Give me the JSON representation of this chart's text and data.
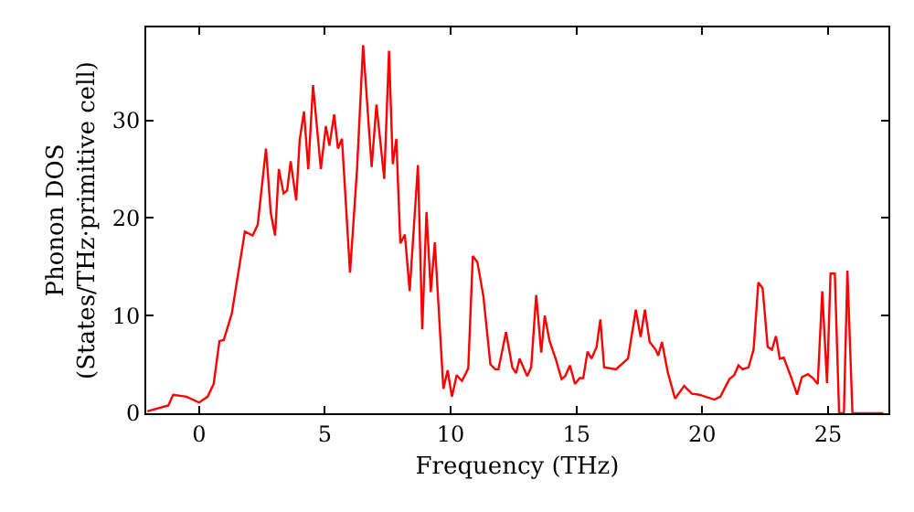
{
  "chart_data": {
    "type": "line",
    "xlabel": "Frequency (THz)",
    "ylabel": "Phonon DOS\n(States/THz·primitive cell)",
    "xlim": [
      -2.1,
      27.4
    ],
    "ylim": [
      0,
      39.5
    ],
    "xticks": [
      0,
      5,
      10,
      15,
      20,
      25
    ],
    "yticks": [
      0,
      10,
      20,
      30
    ],
    "marker": "none",
    "line_style": "solid",
    "series": [
      {
        "color": "#ff0000",
        "x": [
          -2.06,
          -1.22,
          -1.03,
          -0.5,
          0,
          0.34,
          0.58,
          0.81,
          0.98,
          1.3,
          1.82,
          2.13,
          2.33,
          2.66,
          2.85,
          3.02,
          3.17,
          3.36,
          3.5,
          3.64,
          3.86,
          4.0,
          4.17,
          4.34,
          4.53,
          4.84,
          5.04,
          5.18,
          5.37,
          5.52,
          5.68,
          6.0,
          6.28,
          6.52,
          6.86,
          7.05,
          7.36,
          7.55,
          7.7,
          7.84,
          8.0,
          8.18,
          8.37,
          8.7,
          8.87,
          9.04,
          9.21,
          9.37,
          9.71,
          9.88,
          10.05,
          10.24,
          10.45,
          10.7,
          10.88,
          11.06,
          11.3,
          11.58,
          11.77,
          11.9,
          12.2,
          12.45,
          12.6,
          12.74,
          13.04,
          13.2,
          13.4,
          13.6,
          13.74,
          13.93,
          14.17,
          14.41,
          14.55,
          14.74,
          14.94,
          15.13,
          15.27,
          15.44,
          15.6,
          15.8,
          15.95,
          16.1,
          16.57,
          17.05,
          17.36,
          17.55,
          17.72,
          17.91,
          18.15,
          18.25,
          18.4,
          18.63,
          18.92,
          19.28,
          19.59,
          19.88,
          20.48,
          20.72,
          21.08,
          21.27,
          21.44,
          21.6,
          21.84,
          22.04,
          22.23,
          22.4,
          22.6,
          22.77,
          22.93,
          23.08,
          23.24,
          23.53,
          23.77,
          23.96,
          24.2,
          24.4,
          24.59,
          24.77,
          24.96,
          25.1,
          25.27,
          25.44,
          25.63,
          25.77,
          25.97,
          27.2
        ],
        "values": [
          0.2,
          0.8,
          1.9,
          1.7,
          1.1,
          1.7,
          3,
          7.4,
          7.5,
          10.2,
          18.6,
          18.2,
          19.3,
          27.1,
          20.5,
          18.2,
          25,
          22.5,
          22.8,
          25.8,
          21.8,
          28,
          30.9,
          25,
          33.6,
          25,
          29.4,
          27.4,
          30.6,
          27.1,
          28.1,
          14.4,
          25,
          37.7,
          25.2,
          31.6,
          24,
          37.1,
          25.5,
          28.1,
          17.4,
          18.3,
          12.5,
          25.4,
          8.6,
          20.6,
          12.4,
          17.5,
          2.5,
          4.4,
          1.7,
          3.9,
          3.3,
          4.6,
          16.1,
          15.5,
          12,
          5.0,
          4.5,
          4.5,
          8.3,
          4.7,
          4.1,
          5.6,
          3.8,
          4.7,
          12.1,
          6.2,
          10.0,
          7.4,
          5.6,
          3.5,
          3.8,
          4.9,
          3.0,
          3.6,
          3.6,
          6.3,
          5.6,
          6.8,
          9.6,
          4.7,
          4.5,
          5.6,
          10.6,
          7.8,
          10.6,
          7.3,
          6.5,
          5.9,
          7.3,
          4.2,
          1.5,
          2.8,
          2.0,
          1.9,
          1.4,
          1.7,
          3.5,
          3.9,
          4.9,
          4.5,
          4.7,
          6.5,
          13.4,
          12.8,
          6.8,
          6.5,
          7.9,
          5.6,
          5.7,
          3.7,
          1.9,
          3.7,
          4.0,
          3.6,
          3.0,
          12.5,
          3.1,
          14.3,
          14.3,
          0,
          0,
          14.6,
          0,
          0
        ]
      }
    ]
  }
}
